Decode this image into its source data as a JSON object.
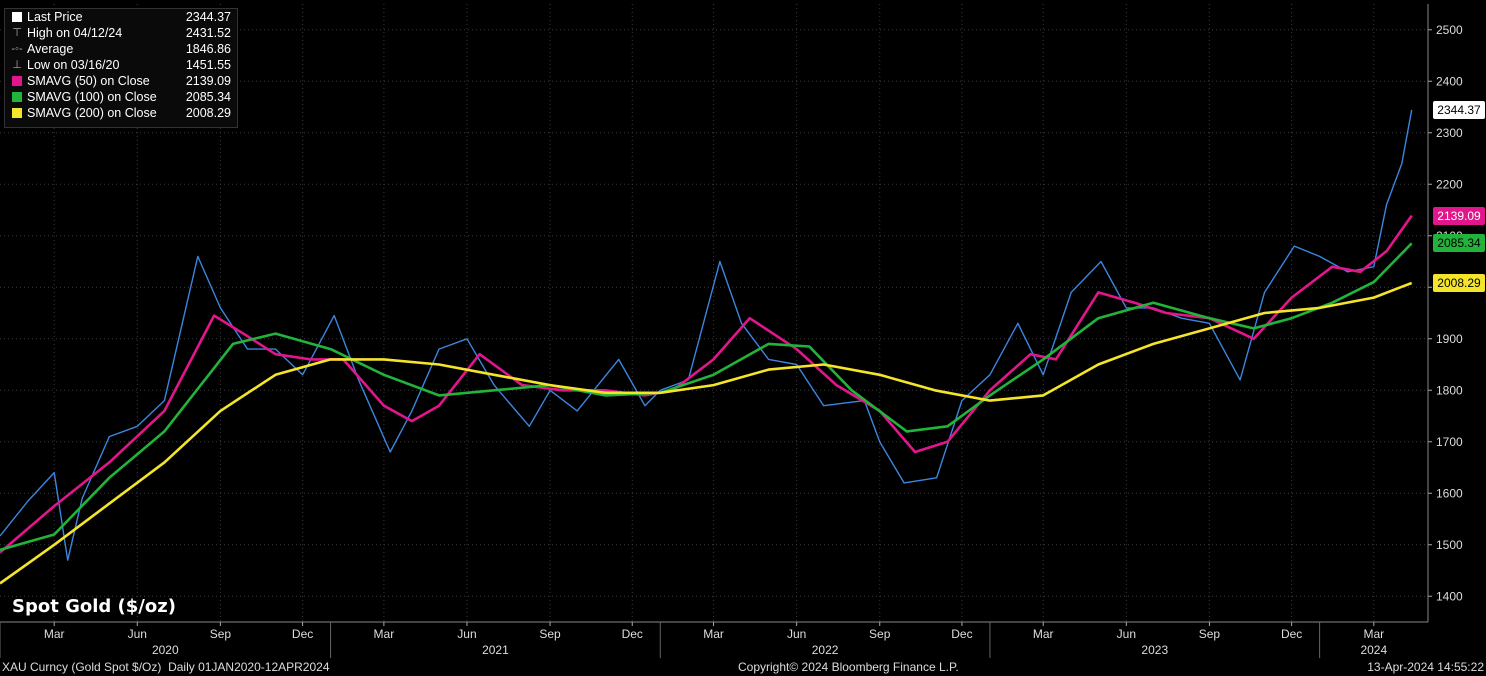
{
  "chart_data": {
    "type": "line",
    "title": "Spot Gold ($/oz)",
    "security": "XAU Curncy (Gold Spot  $/Oz)",
    "period": "Daily 01JAN2020-12APR2024",
    "copyright": "Copyright© 2024 Bloomberg Finance L.P.",
    "timestamp": "13-Apr-2024 14:55:22",
    "ylim": [
      1350,
      2550
    ],
    "y_ticks": [
      1400,
      1500,
      1600,
      1700,
      1800,
      1900,
      2000,
      2100,
      2200,
      2300,
      2400,
      2500
    ],
    "grid": true,
    "legend_position": "top-left",
    "x_month_ticks": [
      {
        "label": "Mar",
        "date": "2020-03"
      },
      {
        "label": "Jun",
        "date": "2020-06"
      },
      {
        "label": "Sep",
        "date": "2020-09"
      },
      {
        "label": "Dec",
        "date": "2020-12"
      },
      {
        "label": "Mar",
        "date": "2021-03"
      },
      {
        "label": "Jun",
        "date": "2021-06"
      },
      {
        "label": "Sep",
        "date": "2021-09"
      },
      {
        "label": "Dec",
        "date": "2021-12"
      },
      {
        "label": "Mar",
        "date": "2022-03"
      },
      {
        "label": "Jun",
        "date": "2022-06"
      },
      {
        "label": "Sep",
        "date": "2022-09"
      },
      {
        "label": "Dec",
        "date": "2022-12"
      },
      {
        "label": "Mar",
        "date": "2023-03"
      },
      {
        "label": "Jun",
        "date": "2023-06"
      },
      {
        "label": "Sep",
        "date": "2023-09"
      },
      {
        "label": "Dec",
        "date": "2023-12"
      },
      {
        "label": "Mar",
        "date": "2024-03"
      }
    ],
    "x_year_labels": [
      "2020",
      "2021",
      "2022",
      "2023",
      "2024"
    ],
    "legend": [
      {
        "label": "Last Price",
        "value": "2344.37",
        "color": "#ffffff",
        "icon": "square"
      },
      {
        "label": "High on 04/12/24",
        "value": "2431.52",
        "color": "#aaaaaa",
        "icon": "high-marker"
      },
      {
        "label": "Average",
        "value": "1846.86",
        "color": "#aaaaaa",
        "icon": "average-marker"
      },
      {
        "label": "Low on 03/16/20",
        "value": "1451.55",
        "color": "#aaaaaa",
        "icon": "low-marker"
      },
      {
        "label": "SMAVG (50)  on Close",
        "value": "2139.09",
        "color": "#e2168c",
        "icon": "square"
      },
      {
        "label": "SMAVG (100)  on Close",
        "value": "2085.34",
        "color": "#22b33a",
        "icon": "square"
      },
      {
        "label": "SMAVG (200)  on Close",
        "value": "2008.29",
        "color": "#f5e52a",
        "icon": "square"
      }
    ],
    "value_tags": [
      {
        "value": "2344.37",
        "color": "#000000",
        "bg": "#ffffff",
        "num": 2344.37
      },
      {
        "value": "2139.09",
        "color": "#ffffff",
        "bg": "#e2168c",
        "num": 2139.09
      },
      {
        "value": "2085.34",
        "color": "#000000",
        "bg": "#22b33a",
        "num": 2085.34
      },
      {
        "value": "2008.29",
        "color": "#000000",
        "bg": "#f5e52a",
        "num": 2008.29
      }
    ],
    "series": [
      {
        "name": "Last Price",
        "color": "#3b86e0",
        "x": [
          "2020-01-01",
          "2020-02-01",
          "2020-03-01",
          "2020-03-16",
          "2020-04-01",
          "2020-05-01",
          "2020-06-01",
          "2020-07-01",
          "2020-08-07",
          "2020-09-01",
          "2020-10-01",
          "2020-11-01",
          "2020-12-01",
          "2021-01-05",
          "2021-02-01",
          "2021-03-08",
          "2021-04-01",
          "2021-05-01",
          "2021-06-01",
          "2021-07-01",
          "2021-08-09",
          "2021-09-01",
          "2021-10-01",
          "2021-11-16",
          "2021-12-15",
          "2022-01-01",
          "2022-02-01",
          "2022-03-08",
          "2022-04-01",
          "2022-05-01",
          "2022-06-01",
          "2022-07-01",
          "2022-08-15",
          "2022-09-01",
          "2022-09-28",
          "2022-11-03",
          "2022-12-01",
          "2023-01-01",
          "2023-02-01",
          "2023-03-01",
          "2023-04-01",
          "2023-05-04",
          "2023-06-01",
          "2023-07-01",
          "2023-08-01",
          "2023-09-01",
          "2023-10-05",
          "2023-11-01",
          "2023-12-04",
          "2024-01-01",
          "2024-02-01",
          "2024-03-01",
          "2024-03-15",
          "2024-04-01",
          "2024-04-12"
        ],
        "y": [
          1517,
          1585,
          1640,
          1470,
          1590,
          1710,
          1730,
          1780,
          2060,
          1960,
          1880,
          1880,
          1830,
          1945,
          1820,
          1680,
          1760,
          1880,
          1900,
          1810,
          1730,
          1800,
          1760,
          1860,
          1770,
          1800,
          1820,
          2050,
          1930,
          1860,
          1850,
          1770,
          1780,
          1700,
          1620,
          1630,
          1780,
          1830,
          1930,
          1830,
          1990,
          2050,
          1960,
          1960,
          1940,
          1930,
          1820,
          1990,
          2080,
          2060,
          2030,
          2040,
          2160,
          2240,
          2344.37
        ]
      },
      {
        "name": "SMAVG (50)  on Close",
        "color": "#e2168c",
        "x": [
          "2020-01-01",
          "2020-03-01",
          "2020-05-01",
          "2020-07-01",
          "2020-08-25",
          "2020-10-01",
          "2020-11-01",
          "2020-12-10",
          "2021-01-15",
          "2021-03-01",
          "2021-04-01",
          "2021-05-01",
          "2021-06-15",
          "2021-08-01",
          "2021-09-15",
          "2021-11-01",
          "2021-12-15",
          "2022-01-15",
          "2022-03-01",
          "2022-04-10",
          "2022-06-01",
          "2022-07-15",
          "2022-09-01",
          "2022-10-10",
          "2022-11-15",
          "2023-01-01",
          "2023-02-15",
          "2023-03-15",
          "2023-05-01",
          "2023-06-10",
          "2023-07-15",
          "2023-09-01",
          "2023-10-20",
          "2023-12-01",
          "2024-01-15",
          "2024-02-15",
          "2024-03-15",
          "2024-04-12"
        ],
        "y": [
          1485,
          1575,
          1660,
          1760,
          1945,
          1905,
          1870,
          1860,
          1860,
          1770,
          1740,
          1770,
          1870,
          1810,
          1800,
          1800,
          1790,
          1800,
          1860,
          1940,
          1880,
          1810,
          1760,
          1680,
          1700,
          1800,
          1870,
          1860,
          1990,
          1970,
          1950,
          1940,
          1900,
          1980,
          2040,
          2030,
          2070,
          2139.09
        ]
      },
      {
        "name": "SMAVG (100)  on Close",
        "color": "#22b33a",
        "x": [
          "2020-01-01",
          "2020-03-01",
          "2020-05-01",
          "2020-07-01",
          "2020-09-15",
          "2020-11-01",
          "2021-01-01",
          "2021-03-01",
          "2021-05-01",
          "2021-07-01",
          "2021-09-01",
          "2021-11-01",
          "2022-01-01",
          "2022-03-01",
          "2022-05-01",
          "2022-06-15",
          "2022-08-01",
          "2022-10-01",
          "2022-11-15",
          "2023-01-01",
          "2023-03-01",
          "2023-05-01",
          "2023-07-01",
          "2023-09-01",
          "2023-10-20",
          "2023-12-01",
          "2024-01-15",
          "2024-03-01",
          "2024-04-12"
        ],
        "y": [
          1490,
          1520,
          1630,
          1720,
          1890,
          1910,
          1880,
          1830,
          1790,
          1800,
          1810,
          1790,
          1795,
          1830,
          1890,
          1885,
          1800,
          1720,
          1730,
          1790,
          1860,
          1940,
          1970,
          1940,
          1920,
          1940,
          1970,
          2010,
          2085.34
        ]
      },
      {
        "name": "SMAVG (200)  on Close",
        "color": "#f5e52a",
        "x": [
          "2020-01-01",
          "2020-03-01",
          "2020-05-01",
          "2020-07-01",
          "2020-09-01",
          "2020-11-01",
          "2021-01-01",
          "2021-03-01",
          "2021-05-01",
          "2021-07-01",
          "2021-09-01",
          "2021-11-01",
          "2022-01-01",
          "2022-03-01",
          "2022-05-01",
          "2022-07-01",
          "2022-09-01",
          "2022-11-01",
          "2023-01-01",
          "2023-03-01",
          "2023-05-01",
          "2023-07-01",
          "2023-09-01",
          "2023-11-01",
          "2024-01-01",
          "2024-03-01",
          "2024-04-12"
        ],
        "y": [
          1425,
          1500,
          1580,
          1660,
          1760,
          1830,
          1860,
          1860,
          1850,
          1830,
          1810,
          1795,
          1795,
          1810,
          1840,
          1850,
          1830,
          1800,
          1780,
          1790,
          1850,
          1890,
          1920,
          1950,
          1960,
          1980,
          2008.29
        ]
      }
    ]
  }
}
